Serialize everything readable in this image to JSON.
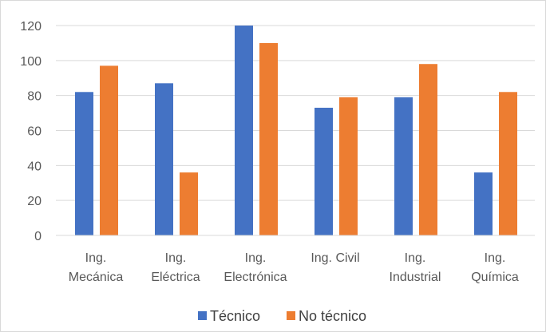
{
  "chart_data": {
    "type": "bar",
    "categories": [
      [
        "Ing.",
        "Mecánica"
      ],
      [
        "Ing.",
        "Eléctrica"
      ],
      [
        "Ing.",
        "Electrónica"
      ],
      [
        "Ing. Civil"
      ],
      [
        "Ing.",
        "Industrial"
      ],
      [
        "Ing.",
        "Química"
      ]
    ],
    "series": [
      {
        "name": "Técnico",
        "color": "#4472C4",
        "values": [
          82,
          87,
          120,
          73,
          79,
          36
        ]
      },
      {
        "name": "No técnico",
        "color": "#ED7D31",
        "values": [
          97,
          36,
          110,
          79,
          98,
          82
        ]
      }
    ],
    "ylim": [
      0,
      120
    ],
    "yticks": [
      0,
      20,
      40,
      60,
      80,
      100,
      120
    ],
    "grid": true,
    "legend": "bottom-center"
  }
}
